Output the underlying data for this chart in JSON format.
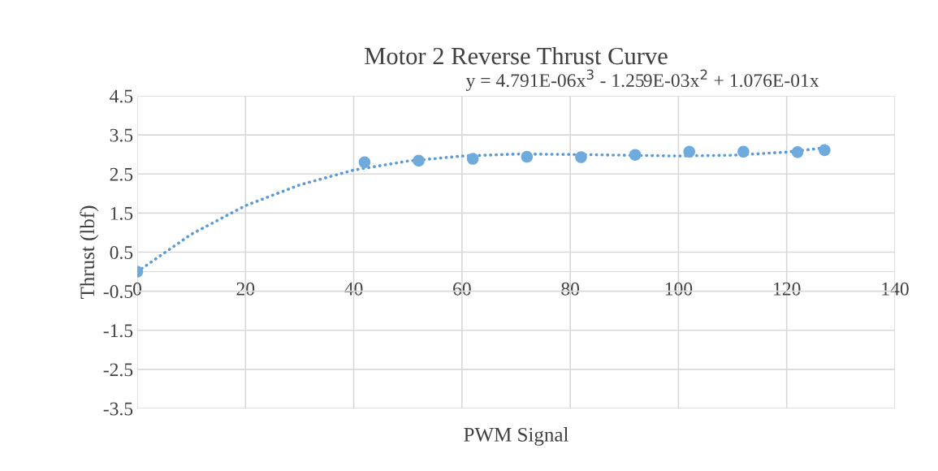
{
  "chart_data": {
    "type": "scatter",
    "title": "Motor 2 Reverse Thrust Curve",
    "xlabel": "PWM Signal",
    "ylabel": "Thrust (lbf)",
    "annotations": [
      "y = 4.791E-06x$^{3}$ - 1.259E-03x$^{2}$ + 1.076E-01x"
    ],
    "series": [
      {
        "color": "#6faadd",
        "marker": "circle",
        "x": [
          0,
          42,
          52,
          62,
          72,
          82,
          92,
          102,
          112,
          122,
          127
        ],
        "values": [
          0,
          2.8,
          2.84,
          2.89,
          2.94,
          2.93,
          2.99,
          3.07,
          3.07,
          3.06,
          3.11
        ]
      },
      {
        "type": "line",
        "color": "#5b9bd5",
        "line_style": "dotted",
        "x": [
          0,
          10,
          20,
          30,
          40,
          50,
          60,
          70,
          80,
          90,
          100,
          110,
          120,
          127
        ],
        "values": [
          0,
          0.96,
          1.69,
          2.22,
          2.6,
          2.83,
          2.96,
          3.01,
          3.0,
          2.98,
          2.96,
          2.98,
          3.06,
          3.17
        ]
      }
    ],
    "xlim": [
      0,
      140
    ],
    "xticks": [
      0,
      20,
      40,
      60,
      80,
      100,
      120,
      140
    ],
    "ylim": [
      -3.5,
      4.5
    ],
    "yticks": [
      -3.5,
      -2.5,
      -1.5,
      -0.5,
      0.5,
      1.5,
      2.5,
      3.5,
      4.5
    ],
    "grid": true,
    "legend": false
  }
}
